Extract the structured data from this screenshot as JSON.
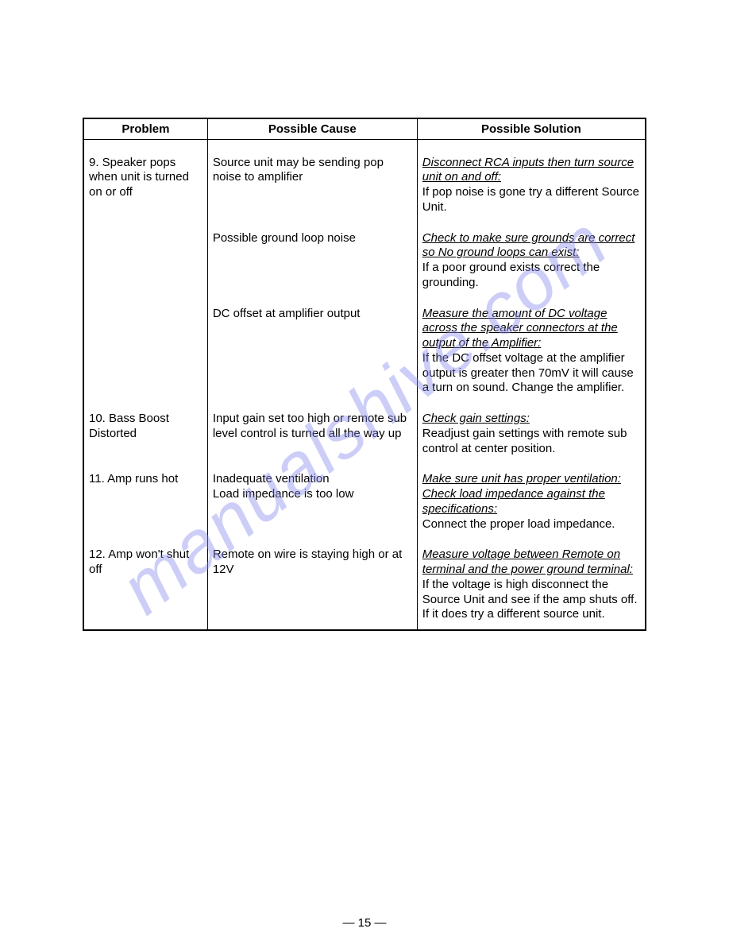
{
  "watermark_text": "manualshive.com",
  "page_number": "15",
  "table": {
    "headers": {
      "problem": "Problem",
      "cause": "Possible Cause",
      "solution": "Possible Solution"
    },
    "rows": {
      "r9": {
        "problem": "9. Speaker pops when unit is turned on or off",
        "items": [
          {
            "cause": "Source unit may be  sending pop noise to amplifier",
            "solution_u": "Disconnect RCA inputs then turn source unit on and off:",
            "solution_rest": "If pop noise is gone try a different Source Unit."
          },
          {
            "cause": "Possible ground loop noise",
            "solution_u": "Check to make sure grounds are correct so No ground loops can exist:",
            "solution_rest": "If a poor ground exists correct the grounding."
          },
          {
            "cause": "DC offset at amplifier output",
            "solution_u": "Measure the amount of DC voltage across the speaker connectors at the output of the Amplifier:",
            "solution_rest": "If the DC offset voltage at the amplifier output is greater then 70mV it will cause a turn on sound. Change the amplifier."
          }
        ]
      },
      "r10": {
        "problem": "10. Bass Boost Distorted",
        "items": [
          {
            "cause": "Input gain set too high or remote sub level control is turned all the way up",
            "solution_u": "Check gain settings:",
            "solution_rest": "Readjust gain settings with remote sub control at center position."
          }
        ]
      },
      "r11": {
        "problem": "11. Amp runs hot",
        "items": [
          {
            "cause": "Inadequate ventilation",
            "solution_u": "Make sure unit has proper ventilation:",
            "solution_rest": ""
          },
          {
            "cause": "Load impedance is too low",
            "solution_u": "Check load impedance against the specifications:",
            "solution_rest": "Connect the proper load impedance."
          }
        ]
      },
      "r12": {
        "problem": "12. Amp won't shut off",
        "items": [
          {
            "cause": "Remote on wire is staying high or at 12V",
            "solution_u": "Measure voltage between Remote on terminal and the power ground terminal:",
            "solution_rest": "If the voltage is high disconnect the Source Unit and see if the amp shuts off. If it does try a different source unit."
          }
        ]
      }
    }
  }
}
